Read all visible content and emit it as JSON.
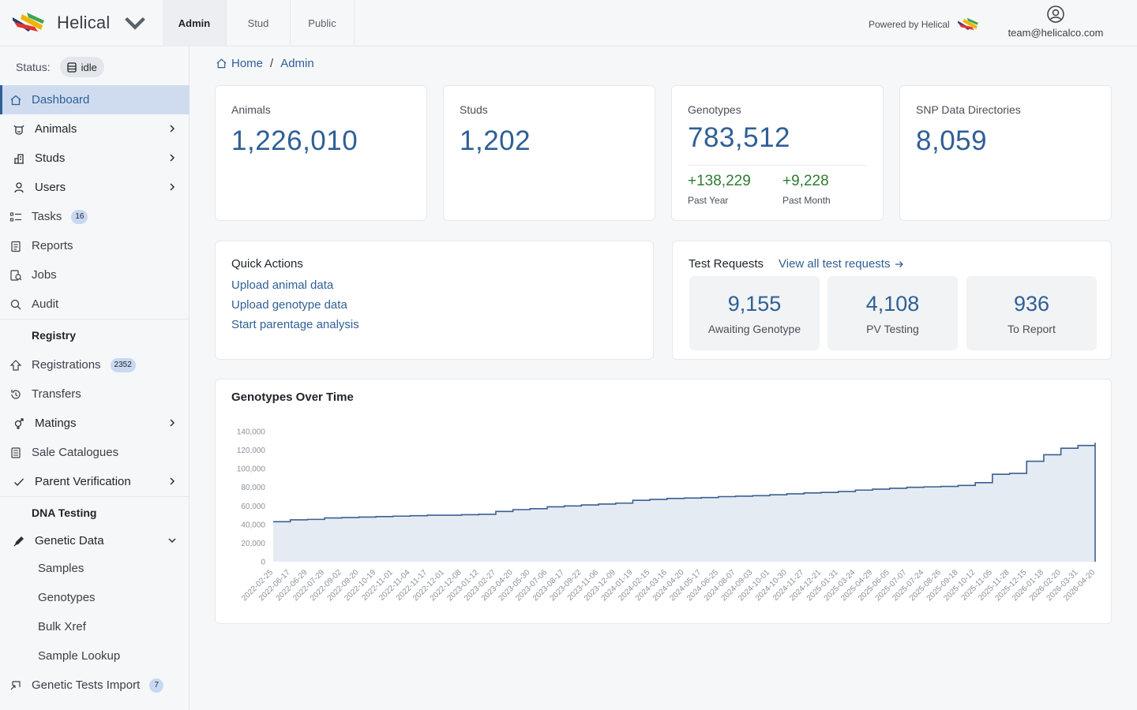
{
  "header": {
    "brand": "Helical",
    "tabs": [
      {
        "label": "Admin",
        "active": true
      },
      {
        "label": "Stud",
        "active": false
      },
      {
        "label": "Public",
        "active": false
      }
    ],
    "powered_by": "Powered by Helical",
    "user_email": "team@helicalco.com"
  },
  "sidebar": {
    "status_label": "Status:",
    "status_value": "idle",
    "items": [
      {
        "label": "Dashboard",
        "icon": "home-icon",
        "active": true
      },
      {
        "label": "Animals",
        "icon": "cow-icon",
        "chevron": true
      },
      {
        "label": "Studs",
        "icon": "building-icon",
        "chevron": true
      },
      {
        "label": "Users",
        "icon": "user-icon",
        "chevron": true
      },
      {
        "label": "Tasks",
        "icon": "list-icon",
        "badge": "16"
      },
      {
        "label": "Reports",
        "icon": "clipboard-icon"
      },
      {
        "label": "Jobs",
        "icon": "job-icon"
      },
      {
        "label": "Audit",
        "icon": "search-icon"
      }
    ],
    "registry_heading": "Registry",
    "registry_items": [
      {
        "label": "Registrations",
        "icon": "registration-icon",
        "badge": "2352"
      },
      {
        "label": "Transfers",
        "icon": "transfer-icon"
      },
      {
        "label": "Matings",
        "icon": "gender-icon",
        "chevron": true
      },
      {
        "label": "Sale Catalogues",
        "icon": "catalogue-icon"
      },
      {
        "label": "Parent Verification",
        "icon": "check-icon",
        "chevron": true
      }
    ],
    "dna_heading": "DNA Testing",
    "genetic_data_label": "Genetic Data",
    "genetic_sub_items": [
      "Samples",
      "Genotypes",
      "Bulk Xref",
      "Sample Lookup"
    ],
    "genetic_import": {
      "label": "Genetic Tests Import",
      "badge": "7"
    }
  },
  "breadcrumb": {
    "home": "Home",
    "current": "Admin"
  },
  "stats": {
    "animals": {
      "label": "Animals",
      "value": "1,226,010"
    },
    "studs": {
      "label": "Studs",
      "value": "1,202"
    },
    "genotypes": {
      "label": "Genotypes",
      "value": "783,512",
      "past_year": "+138,229",
      "past_year_label": "Past Year",
      "past_month": "+9,228",
      "past_month_label": "Past Month"
    },
    "snp": {
      "label": "SNP Data Directories",
      "value": "8,059"
    }
  },
  "quick_actions": {
    "title": "Quick Actions",
    "links": [
      "Upload animal data",
      "Upload genotype data",
      "Start parentage analysis"
    ]
  },
  "test_requests": {
    "title": "Test Requests",
    "link": "View all test requests",
    "boxes": [
      {
        "value": "9,155",
        "label": "Awaiting Genotype"
      },
      {
        "value": "4,108",
        "label": "PV Testing"
      },
      {
        "value": "936",
        "label": "To Report"
      }
    ]
  },
  "colors": {
    "accent": "#2f5f96",
    "positive": "#2e7d32",
    "line": "#3b5f93",
    "area": "#e1e7f0"
  },
  "chart_data": {
    "type": "area",
    "title": "Genotypes Over Time",
    "xlabel": "",
    "ylabel": "",
    "ylim": [
      0,
      140000
    ],
    "yticks": [
      0,
      20000,
      40000,
      60000,
      80000,
      100000,
      120000,
      140000
    ],
    "ytick_labels": [
      "0",
      "20,000",
      "40,000",
      "60,000",
      "80,000",
      "100,000",
      "120,000",
      "140,000"
    ],
    "grid": false,
    "legend": "none",
    "x": [
      "2022-02-25",
      "2022-06-17",
      "2022-06-29",
      "2022-07-29",
      "2022-09-02",
      "2022-09-20",
      "2022-10-19",
      "2022-11-01",
      "2022-11-04",
      "2022-11-17",
      "2022-12-01",
      "2022-12-08",
      "2023-01-12",
      "2023-02-27",
      "2023-04-20",
      "2023-05-30",
      "2023-07-06",
      "2023-08-17",
      "2023-09-22",
      "2023-11-06",
      "2023-12-09",
      "2024-01-19",
      "2024-02-15",
      "2024-03-16",
      "2024-04-20",
      "2024-05-17",
      "2024-06-25",
      "2024-08-07",
      "2024-09-03",
      "2024-10-01",
      "2024-10-30",
      "2024-11-27",
      "2024-12-21",
      "2025-01-31",
      "2025-03-24",
      "2025-04-29",
      "2025-06-05",
      "2025-07-07",
      "2025-07-24",
      "2025-08-26",
      "2025-09-18",
      "2025-10-12",
      "2025-11-05",
      "2025-11-28",
      "2025-12-15",
      "2026-01-18",
      "2026-02-20",
      "2026-03-31",
      "2026-04-20"
    ],
    "values": [
      43000,
      45000,
      45500,
      47000,
      47500,
      48000,
      48500,
      49000,
      49500,
      50000,
      50000,
      50500,
      51000,
      54000,
      56000,
      57000,
      59000,
      60000,
      61000,
      62000,
      63000,
      66000,
      67000,
      68000,
      68500,
      69000,
      70000,
      70500,
      71000,
      72000,
      73000,
      74000,
      74500,
      75500,
      77000,
      78000,
      79000,
      80000,
      80500,
      81000,
      82000,
      85000,
      94000,
      95000,
      108000,
      115000,
      122000,
      125000,
      128000
    ],
    "final_drop": 0
  }
}
